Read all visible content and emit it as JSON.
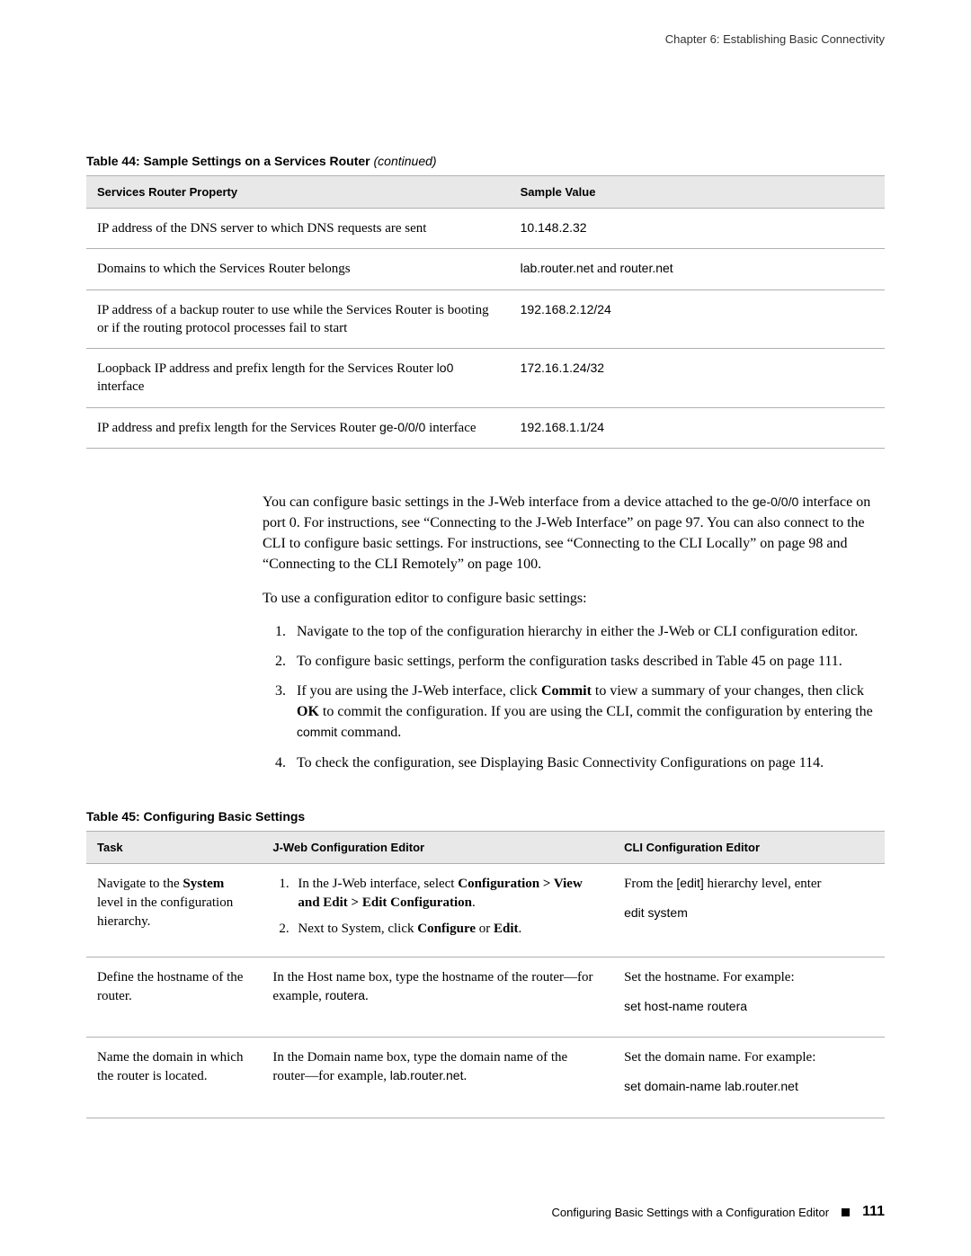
{
  "header": {
    "chapter": "Chapter 6: Establishing Basic Connectivity"
  },
  "table44": {
    "title_prefix": "Table 44:  Sample Settings on a Services Router ",
    "continued": "(continued)",
    "columns": {
      "property": "Services Router Property",
      "value": "Sample Value"
    },
    "rows": [
      {
        "property": "IP address of the DNS server to which DNS requests are sent",
        "value": "10.148.2.32"
      },
      {
        "property": "Domains to which the Services Router belongs",
        "value_parts": [
          "lab.router.net",
          " and ",
          "router.net"
        ]
      },
      {
        "property": "IP address of a backup router to use while the Services Router is booting or if the routing protocol processes fail to start",
        "value": "192.168.2.12/24"
      },
      {
        "property_parts": [
          "Loopback IP address and prefix length for the Services Router ",
          "lo0",
          " interface"
        ],
        "value": "172.16.1.24/32"
      },
      {
        "property_parts": [
          "IP address and prefix length for the Services Router ",
          "ge-0/0/0",
          " interface"
        ],
        "value": "192.168.1.1/24"
      }
    ]
  },
  "body": {
    "p1_parts": [
      "You can configure basic settings in the J-Web interface from a device attached to the ",
      "ge-0/0/0",
      " interface on port 0. For instructions, see “Connecting to the J-Web Interface” on page 97. You can also connect to the CLI to configure basic settings. For instructions, see “Connecting to the CLI Locally” on page 98 and “Connecting to the CLI Remotely” on page 100."
    ],
    "p2": "To use a configuration editor to configure basic settings:",
    "steps": [
      {
        "text": "Navigate to the top of the configuration hierarchy in either the J-Web or CLI configuration editor."
      },
      {
        "text": "To configure basic settings, perform the configuration tasks described in Table 45 on page 111."
      },
      {
        "parts": [
          "If you are using the J-Web interface, click ",
          "Commit",
          " to view a summary of your changes, then click ",
          "OK",
          " to commit the configuration. If you are using the CLI, commit the configuration by entering the ",
          "commit",
          " command."
        ]
      },
      {
        "text": "To check the configuration, see Displaying Basic Connectivity Configurations on page 114."
      }
    ]
  },
  "table45": {
    "title": "Table 45: Configuring Basic Settings",
    "columns": {
      "task": "Task",
      "jweb": "J-Web Configuration Editor",
      "cli": "CLI Configuration Editor"
    },
    "rows": [
      {
        "task_parts": [
          "Navigate to the ",
          "System",
          " level in the configuration hierarchy."
        ],
        "jweb_steps": [
          {
            "parts": [
              "In the J-Web interface, select ",
              "Configuration > View and Edit > Edit Configuration",
              "."
            ]
          },
          {
            "parts": [
              "Next to System, click ",
              "Configure",
              " or ",
              "Edit",
              "."
            ]
          }
        ],
        "cli_parts": [
          "From the ",
          "[edit]",
          " hierarchy level, enter"
        ],
        "cli_cmd": "edit system"
      },
      {
        "task": "Define the hostname of the router.",
        "jweb_parts": [
          "In the Host name box, type the hostname of the router—for example, ",
          "routera",
          "."
        ],
        "cli_text": "Set the hostname. For example:",
        "cli_cmd": "set host-name routera"
      },
      {
        "task": "Name the domain in which the router is located.",
        "jweb_parts": [
          "In the Domain name box, type the domain name of the router—for example, ",
          "lab.router.net",
          "."
        ],
        "cli_text": "Set the domain name. For example:",
        "cli_cmd": "set domain-name lab.router.net"
      }
    ]
  },
  "footer": {
    "section": "Configuring Basic Settings with a Configuration Editor",
    "page": "111"
  }
}
